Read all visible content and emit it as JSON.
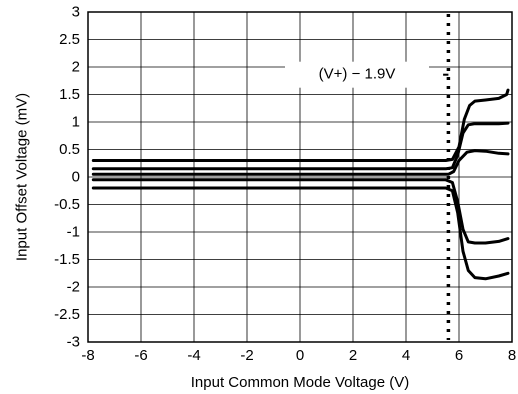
{
  "chart_data": {
    "type": "line",
    "title": "",
    "xlabel": "Input Common Mode Voltage (V)",
    "ylabel": "Input Offset Voltage (mV)",
    "xlim": [
      -8,
      8
    ],
    "ylim": [
      -3,
      3
    ],
    "x_ticks": [
      -8,
      -6,
      -4,
      -2,
      0,
      2,
      4,
      6,
      8
    ],
    "y_ticks": [
      -3,
      -2.5,
      -2,
      -1.5,
      -1,
      -0.5,
      0,
      0.5,
      1,
      1.5,
      2,
      2.5,
      3
    ],
    "x_tick_labels": [
      "-8",
      "-6",
      "-4",
      "-2",
      "0",
      "2",
      "4",
      "6",
      "8"
    ],
    "y_tick_labels": [
      "-3",
      "-2.5",
      "-2",
      "-1.5",
      "-1",
      "-0.5",
      "0",
      "0.5",
      "1",
      "1.5",
      "2",
      "2.5",
      "3"
    ],
    "grid": true,
    "series": [
      {
        "x": [
          -7.8,
          5.5,
          5.75,
          6.0,
          6.2,
          6.4,
          6.6,
          7.0,
          7.5,
          7.8,
          7.85
        ],
        "y": [
          0.3,
          0.3,
          0.32,
          0.55,
          1.05,
          1.3,
          1.38,
          1.4,
          1.43,
          1.5,
          1.58
        ]
      },
      {
        "x": [
          -7.8,
          5.5,
          5.75,
          5.95,
          6.15,
          6.35,
          6.6,
          7.0,
          7.5,
          7.85
        ],
        "y": [
          0.15,
          0.15,
          0.17,
          0.4,
          0.8,
          0.95,
          0.97,
          0.97,
          0.97,
          0.98
        ]
      },
      {
        "x": [
          -7.8,
          5.6,
          5.8,
          6.0,
          6.3,
          6.6,
          7.0,
          7.5,
          7.85
        ],
        "y": [
          0.05,
          0.05,
          0.1,
          0.3,
          0.45,
          0.48,
          0.47,
          0.43,
          0.42
        ]
      },
      {
        "x": [
          -7.8,
          5.5,
          5.75,
          5.95,
          6.15,
          6.35,
          6.6,
          7.0,
          7.5,
          7.85
        ],
        "y": [
          -0.05,
          -0.05,
          -0.1,
          -0.45,
          -0.95,
          -1.18,
          -1.2,
          -1.2,
          -1.17,
          -1.12
        ]
      },
      {
        "x": [
          -7.8,
          5.5,
          5.75,
          5.95,
          6.15,
          6.35,
          6.6,
          7.0,
          7.5,
          7.85
        ],
        "y": [
          -0.2,
          -0.2,
          -0.25,
          -0.65,
          -1.35,
          -1.7,
          -1.83,
          -1.85,
          -1.8,
          -1.75
        ]
      }
    ],
    "reference_line": {
      "x": 5.6,
      "style": "dotted"
    },
    "annotation": {
      "text": "(V+) − 1.9V",
      "pointer_x": [
        5.4,
        5.6
      ],
      "y": 1.86
    }
  }
}
